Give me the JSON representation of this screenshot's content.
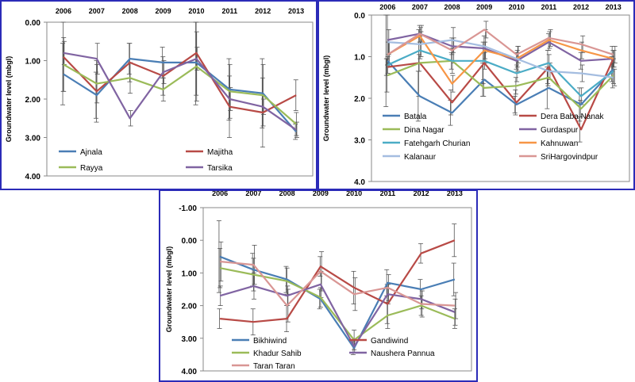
{
  "chart_data": [
    {
      "type": "line",
      "ylabel": "Groundwater level (mbgl)",
      "ylim": [
        4.0,
        0.0
      ],
      "y_ticks": [
        "0.00",
        "1.00",
        "2.00",
        "3.00",
        "4.00"
      ],
      "categories": [
        "2006",
        "2007",
        "2008",
        "2009",
        "2010",
        "2011",
        "2012",
        "2013"
      ],
      "legend_position": "bottom-left",
      "series": [
        {
          "name": "Ajnala",
          "color": "#4a7eb5",
          "values": [
            1.35,
            1.9,
            0.95,
            1.05,
            1.05,
            1.75,
            1.85,
            2.85
          ]
        },
        {
          "name": "Majitha",
          "color": "#b84a46",
          "values": [
            0.9,
            1.8,
            1.05,
            1.4,
            0.8,
            2.2,
            2.35,
            1.9
          ]
        },
        {
          "name": "Rayya",
          "color": "#9bbb59",
          "values": [
            1.1,
            1.6,
            1.45,
            1.75,
            1.15,
            1.8,
            1.9,
            2.65
          ]
        },
        {
          "name": "Tarsika",
          "color": "#8064a2",
          "values": [
            0.8,
            0.95,
            2.5,
            1.3,
            0.95,
            2.0,
            2.2,
            2.8
          ]
        }
      ]
    },
    {
      "type": "line",
      "ylabel": "Groundwater level (mbgl)",
      "ylim": [
        4.0,
        0.0
      ],
      "y_ticks": [
        "0.0",
        "1.0",
        "2.0",
        "3.0",
        "4.0"
      ],
      "categories": [
        "2006",
        "2007",
        "2008",
        "2009",
        "2010",
        "2011",
        "2012",
        "2013"
      ],
      "legend_position": "bottom",
      "series": [
        {
          "name": "Batala",
          "color": "#4a7eb5",
          "values": [
            1.1,
            1.95,
            2.35,
            1.55,
            2.15,
            1.75,
            2.15,
            1.3
          ]
        },
        {
          "name": "Dera Baba Nanak",
          "color": "#b84a46",
          "values": [
            1.25,
            1.15,
            2.1,
            1.15,
            2.1,
            1.25,
            2.75,
            1.05
          ]
        },
        {
          "name": "Dina Nagar",
          "color": "#9bbb59",
          "values": [
            1.45,
            1.15,
            1.1,
            1.75,
            1.7,
            1.5,
            2.25,
            1.45
          ]
        },
        {
          "name": "Gurdaspur",
          "color": "#8064a2",
          "values": [
            0.6,
            0.45,
            0.75,
            0.8,
            1.1,
            0.65,
            1.1,
            1.05
          ]
        },
        {
          "name": "Fatehgarh Churian",
          "color": "#4bacc6",
          "values": [
            1.2,
            0.85,
            1.1,
            1.1,
            1.4,
            1.15,
            1.95,
            1.35
          ]
        },
        {
          "name": "Kahnuwan",
          "color": "#f79646",
          "values": [
            0.95,
            0.5,
            1.65,
            0.85,
            1.05,
            0.6,
            0.85,
            1.05
          ]
        },
        {
          "name": "Kalanaur",
          "color": "#a4bde0",
          "values": [
            0.65,
            0.7,
            0.6,
            0.75,
            1.05,
            1.35,
            1.4,
            1.5
          ]
        },
        {
          "name": "SriHargovindpur",
          "color": "#d99694",
          "values": [
            0.95,
            0.45,
            0.85,
            0.35,
            0.95,
            0.55,
            0.7,
            0.95
          ]
        }
      ]
    },
    {
      "type": "line",
      "ylabel": "Groundwater level (mbgl)",
      "ylim": [
        4.0,
        -1.0
      ],
      "y_ticks": [
        "-1.00",
        "0.00",
        "1.00",
        "2.00",
        "3.00",
        "4.00"
      ],
      "categories": [
        "2006",
        "2007",
        "2008",
        "2009",
        "2010",
        "2011",
        "2012",
        "2013"
      ],
      "legend_position": "bottom",
      "series": [
        {
          "name": "Bikhiwind",
          "color": "#4a7eb5",
          "values": [
            0.5,
            0.9,
            1.2,
            1.8,
            3.3,
            1.3,
            1.5,
            1.2
          ]
        },
        {
          "name": "Gandiwind",
          "color": "#b84a46",
          "values": [
            2.4,
            2.5,
            2.4,
            0.8,
            1.45,
            1.95,
            0.4,
            0.0
          ]
        },
        {
          "name": "Khadur Sahib",
          "color": "#9bbb59",
          "values": [
            0.85,
            1.05,
            1.25,
            1.75,
            3.05,
            2.3,
            2.0,
            2.4
          ]
        },
        {
          "name": "Naushera Pannua",
          "color": "#8064a2",
          "values": [
            1.7,
            1.4,
            1.7,
            1.35,
            3.25,
            1.65,
            1.8,
            2.2
          ]
        },
        {
          "name": "Taran Taran",
          "color": "#d99694",
          "values": [
            0.65,
            0.75,
            2.0,
            0.95,
            1.65,
            1.45,
            1.95,
            2.0
          ]
        }
      ]
    }
  ]
}
